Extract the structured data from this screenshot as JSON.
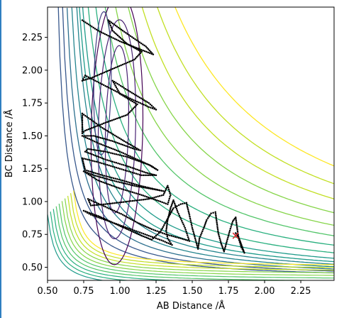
{
  "chart_data": {
    "type": "contour",
    "xlabel": "AB Distance /Å",
    "ylabel": "BC Distance /Å",
    "xlim": [
      0.5,
      2.48
    ],
    "ylim": [
      0.4,
      2.48
    ],
    "xticks": [
      "0.50",
      "0.75",
      "1.00",
      "1.25",
      "1.50",
      "1.75",
      "2.00",
      "2.25"
    ],
    "yticks": [
      "0.50",
      "0.75",
      "1.00",
      "1.25",
      "1.50",
      "1.75",
      "2.00",
      "2.25"
    ],
    "colormap": "viridis",
    "grid": false,
    "contours": {
      "ridge_levels": [
        0.45,
        0.5,
        0.55,
        0.6,
        0.65,
        0.7,
        0.76,
        0.85,
        0.96,
        1.08,
        1.2,
        1.33,
        1.46,
        1.59,
        1.73
      ],
      "wall_levels": [
        0.44,
        0.46,
        0.48,
        0.5,
        0.52,
        0.54,
        0.56,
        0.58,
        0.6,
        0.62
      ]
    },
    "trajectory": {
      "color": "#000000",
      "points": [
        [
          0.74,
          2.38
        ],
        [
          0.85,
          2.3
        ],
        [
          1.0,
          2.22
        ],
        [
          1.16,
          2.15
        ],
        [
          1.23,
          2.12
        ],
        [
          1.18,
          2.18
        ],
        [
          1.02,
          2.3
        ],
        [
          0.92,
          2.38
        ],
        [
          0.95,
          2.3
        ],
        [
          1.05,
          2.2
        ],
        [
          1.15,
          2.14
        ],
        [
          1.1,
          2.08
        ],
        [
          0.95,
          2.01
        ],
        [
          0.8,
          1.94
        ],
        [
          0.74,
          1.92
        ],
        [
          0.76,
          1.96
        ],
        [
          0.9,
          1.88
        ],
        [
          1.06,
          1.79
        ],
        [
          1.2,
          1.72
        ],
        [
          1.25,
          1.7
        ],
        [
          1.2,
          1.75
        ],
        [
          1.05,
          1.85
        ],
        [
          0.95,
          1.92
        ],
        [
          1.0,
          1.82
        ],
        [
          1.12,
          1.74
        ],
        [
          1.05,
          1.66
        ],
        [
          0.9,
          1.6
        ],
        [
          0.76,
          1.54
        ],
        [
          0.74,
          1.52
        ],
        [
          0.74,
          1.67
        ],
        [
          0.88,
          1.56
        ],
        [
          1.03,
          1.46
        ],
        [
          1.14,
          1.39
        ],
        [
          1.1,
          1.4
        ],
        [
          0.95,
          1.46
        ],
        [
          0.82,
          1.5
        ],
        [
          0.74,
          1.5
        ],
        [
          0.86,
          1.44
        ],
        [
          1.0,
          1.38
        ],
        [
          1.12,
          1.32
        ],
        [
          1.22,
          1.27
        ],
        [
          1.26,
          1.24
        ],
        [
          1.2,
          1.28
        ],
        [
          1.05,
          1.34
        ],
        [
          0.9,
          1.38
        ],
        [
          0.78,
          1.4
        ],
        [
          0.76,
          1.38
        ],
        [
          0.9,
          1.32
        ],
        [
          1.05,
          1.27
        ],
        [
          1.18,
          1.22
        ],
        [
          1.25,
          1.2
        ],
        [
          1.15,
          1.2
        ],
        [
          1.0,
          1.25
        ],
        [
          0.85,
          1.3
        ],
        [
          0.74,
          1.33
        ],
        [
          0.76,
          1.24
        ],
        [
          0.88,
          1.2
        ],
        [
          1.02,
          1.16
        ],
        [
          1.14,
          1.12
        ],
        [
          1.26,
          1.09
        ],
        [
          1.3,
          1.08
        ],
        [
          1.25,
          1.09
        ],
        [
          1.1,
          1.12
        ],
        [
          0.95,
          1.16
        ],
        [
          0.82,
          1.2
        ],
        [
          0.75,
          1.23
        ],
        [
          0.85,
          1.16
        ],
        [
          1.0,
          1.1
        ],
        [
          1.15,
          1.05
        ],
        [
          1.28,
          1.0
        ],
        [
          1.33,
          0.98
        ],
        [
          1.35,
          1.05
        ],
        [
          1.33,
          1.12
        ],
        [
          1.3,
          1.05
        ],
        [
          1.2,
          1.02
        ],
        [
          1.05,
          1.0
        ],
        [
          0.9,
          0.98
        ],
        [
          0.8,
          0.97
        ],
        [
          0.78,
          1.02
        ],
        [
          0.9,
          0.96
        ],
        [
          1.02,
          0.9
        ],
        [
          1.12,
          0.84
        ],
        [
          1.22,
          0.79
        ],
        [
          1.32,
          0.75
        ],
        [
          1.42,
          0.72
        ],
        [
          1.48,
          0.7
        ],
        [
          1.45,
          0.8
        ],
        [
          1.4,
          0.92
        ],
        [
          1.37,
          1.01
        ],
        [
          1.35,
          0.95
        ],
        [
          1.33,
          0.86
        ],
        [
          1.32,
          0.78
        ],
        [
          1.33,
          0.72
        ],
        [
          1.36,
          0.67
        ],
        [
          1.3,
          0.7
        ],
        [
          1.2,
          0.74
        ],
        [
          1.1,
          0.78
        ],
        [
          1.0,
          0.82
        ],
        [
          0.9,
          0.86
        ],
        [
          0.8,
          0.9
        ],
        [
          0.75,
          0.93
        ],
        [
          0.85,
          0.89
        ],
        [
          0.95,
          0.84
        ],
        [
          1.05,
          0.79
        ],
        [
          1.15,
          0.74
        ],
        [
          1.22,
          0.71
        ],
        [
          1.28,
          0.77
        ],
        [
          1.33,
          0.87
        ],
        [
          1.37,
          0.95
        ],
        [
          1.42,
          0.98
        ],
        [
          1.46,
          0.99
        ],
        [
          1.48,
          0.9
        ],
        [
          1.5,
          0.8
        ],
        [
          1.52,
          0.72
        ],
        [
          1.54,
          0.64
        ],
        [
          1.55,
          0.72
        ],
        [
          1.58,
          0.8
        ],
        [
          1.6,
          0.86
        ],
        [
          1.63,
          0.91
        ],
        [
          1.66,
          0.92
        ],
        [
          1.67,
          0.84
        ],
        [
          1.68,
          0.76
        ],
        [
          1.7,
          0.68
        ],
        [
          1.72,
          0.62
        ],
        [
          1.74,
          0.7
        ],
        [
          1.76,
          0.78
        ],
        [
          1.78,
          0.85
        ],
        [
          1.8,
          0.88
        ],
        [
          1.81,
          0.8
        ],
        [
          1.82,
          0.72
        ],
        [
          1.84,
          0.65
        ],
        [
          1.86,
          0.61
        ],
        [
          1.84,
          0.67
        ],
        [
          1.82,
          0.73
        ],
        [
          1.8,
          0.76
        ]
      ]
    },
    "end_marker": {
      "x": 1.8,
      "y": 0.74,
      "symbol": "x",
      "color": "#d62728"
    }
  }
}
